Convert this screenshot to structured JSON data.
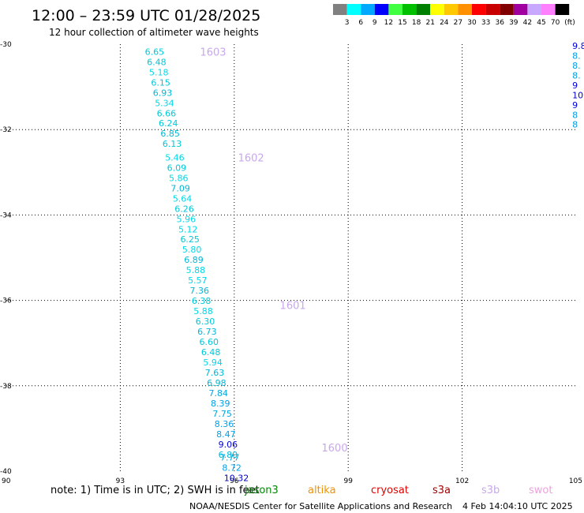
{
  "title": "12:00 – 23:59 UTC 01/28/2025",
  "subtitle": "12 hour collection of altimeter wave heights",
  "footer_left": "NOAA/NESDIS Center for Satellite Applications and Research",
  "footer_right": "4 Feb 14:04:10 UTC 2025",
  "note": "note:  1) Time is in UTC; 2) SWH is in feet",
  "missions": [
    {
      "name": "jason3",
      "color": "#008800"
    },
    {
      "name": "altika",
      "color": "#f09000"
    },
    {
      "name": "cryosat",
      "color": "#e00000"
    },
    {
      "name": "s3a",
      "color": "#a00000"
    },
    {
      "name": "s3b",
      "color": "#c8a8ec"
    },
    {
      "name": "swot",
      "color": "#f0a0e0"
    }
  ],
  "color_scale": {
    "unit": "(ft)",
    "labels": [
      "3",
      "6",
      "9",
      "12",
      "15",
      "18",
      "21",
      "24",
      "27",
      "30",
      "33",
      "36",
      "39",
      "42",
      "45",
      "70"
    ],
    "colors": [
      "#808080",
      "#00ffff",
      "#00a8ff",
      "#0000ff",
      "#40ff40",
      "#00c000",
      "#008000",
      "#ffff00",
      "#ffc800",
      "#ff9000",
      "#ff0000",
      "#c80000",
      "#800000",
      "#a000a0",
      "#c8a8ff",
      "#ff80ff",
      "#000000"
    ]
  },
  "chart_data": {
    "type": "scatter",
    "title": "12:00 – 23:59 UTC 01/28/2025",
    "subtitle": "12 hour collection of altimeter wave heights",
    "xlim": [
      90,
      105
    ],
    "ylim": [
      -40,
      -30
    ],
    "x_ticks": [
      "90",
      "93",
      "96",
      "99",
      "102",
      "105"
    ],
    "y_ticks": [
      "-30",
      "-32",
      "-34",
      "-36",
      "-38",
      "-40"
    ],
    "grid": true,
    "passes": [
      {
        "label": "1603",
        "lon": 95.1,
        "lat": -30.18
      },
      {
        "label": "1602",
        "lon": 96.1,
        "lat": -32.65
      },
      {
        "label": "1601",
        "lon": 97.2,
        "lat": -36.11
      },
      {
        "label": "1600",
        "lon": 98.3,
        "lat": -39.45
      }
    ],
    "points": [
      {
        "lon": 93.65,
        "lat": -30.18,
        "swh": "6.65",
        "color": "#00c8d8"
      },
      {
        "lon": 93.7,
        "lat": -30.42,
        "swh": "6.48",
        "color": "#00c8d8"
      },
      {
        "lon": 93.76,
        "lat": -30.66,
        "swh": "5.18",
        "color": "#00d8e8"
      },
      {
        "lon": 93.81,
        "lat": -30.9,
        "swh": "6.15",
        "color": "#00c8d8"
      },
      {
        "lon": 93.86,
        "lat": -31.14,
        "swh": "6.93",
        "color": "#00b8d8"
      },
      {
        "lon": 93.91,
        "lat": -31.38,
        "swh": "5.34",
        "color": "#00d8e8"
      },
      {
        "lon": 93.96,
        "lat": -31.62,
        "swh": "6.66",
        "color": "#00c8d8"
      },
      {
        "lon": 94.01,
        "lat": -31.85,
        "swh": "6.24",
        "color": "#00c8d8"
      },
      {
        "lon": 94.06,
        "lat": -32.09,
        "swh": "6.85",
        "color": "#00b8d8"
      },
      {
        "lon": 94.11,
        "lat": -32.33,
        "swh": "6.13",
        "color": "#00c8d8"
      },
      {
        "lon": 94.18,
        "lat": -32.65,
        "swh": "5.46",
        "color": "#00d8e8"
      },
      {
        "lon": 94.23,
        "lat": -32.89,
        "swh": "6.09",
        "color": "#00c8d8"
      },
      {
        "lon": 94.28,
        "lat": -33.13,
        "swh": "5.86",
        "color": "#00d8e8"
      },
      {
        "lon": 94.33,
        "lat": -33.37,
        "swh": "7.09",
        "color": "#00b8d8"
      },
      {
        "lon": 94.38,
        "lat": -33.61,
        "swh": "5.64",
        "color": "#00d8e8"
      },
      {
        "lon": 94.43,
        "lat": -33.85,
        "swh": "6.26",
        "color": "#00c8d8"
      },
      {
        "lon": 94.48,
        "lat": -34.09,
        "swh": "5.96",
        "color": "#00d8e8"
      },
      {
        "lon": 94.53,
        "lat": -34.33,
        "swh": "5.12",
        "color": "#00d8e8"
      },
      {
        "lon": 94.58,
        "lat": -34.57,
        "swh": "6.25",
        "color": "#00c8d8"
      },
      {
        "lon": 94.63,
        "lat": -34.81,
        "swh": "5.80",
        "color": "#00d8e8"
      },
      {
        "lon": 94.68,
        "lat": -35.05,
        "swh": "6.89",
        "color": "#00b8d8"
      },
      {
        "lon": 94.73,
        "lat": -35.29,
        "swh": "5.88",
        "color": "#00d8e8"
      },
      {
        "lon": 94.78,
        "lat": -35.53,
        "swh": "5.57",
        "color": "#00d8e8"
      },
      {
        "lon": 94.83,
        "lat": -35.77,
        "swh": "7.36",
        "color": "#00b8d8"
      },
      {
        "lon": 94.88,
        "lat": -36.01,
        "swh": "6.38",
        "color": "#00c8d8"
      },
      {
        "lon": 94.93,
        "lat": -36.25,
        "swh": "5.88",
        "color": "#00d8e8"
      },
      {
        "lon": 94.98,
        "lat": -36.49,
        "swh": "6.30",
        "color": "#00c8d8"
      },
      {
        "lon": 95.03,
        "lat": -36.73,
        "swh": "6.73",
        "color": "#00b8d8"
      },
      {
        "lon": 95.08,
        "lat": -36.97,
        "swh": "6.60",
        "color": "#00c8d8"
      },
      {
        "lon": 95.13,
        "lat": -37.21,
        "swh": "6.48",
        "color": "#00c8d8"
      },
      {
        "lon": 95.18,
        "lat": -37.45,
        "swh": "5.94",
        "color": "#00d8e8"
      },
      {
        "lon": 95.23,
        "lat": -37.69,
        "swh": "7.63",
        "color": "#00b8d8"
      },
      {
        "lon": 95.28,
        "lat": -37.93,
        "swh": "6.98",
        "color": "#00b8d8"
      },
      {
        "lon": 95.33,
        "lat": -38.17,
        "swh": "7.84",
        "color": "#00a8e0"
      },
      {
        "lon": 95.38,
        "lat": -38.41,
        "swh": "8.39",
        "color": "#00a0e8"
      },
      {
        "lon": 95.43,
        "lat": -38.65,
        "swh": "7.75",
        "color": "#00a8e0"
      },
      {
        "lon": 95.48,
        "lat": -38.89,
        "swh": "8.36",
        "color": "#00a0e8"
      },
      {
        "lon": 95.53,
        "lat": -39.13,
        "swh": "8.47",
        "color": "#00a0e8"
      },
      {
        "lon": 95.58,
        "lat": -39.37,
        "swh": "9.06",
        "color": "#0000e0"
      },
      {
        "lon": 95.58,
        "lat": -39.61,
        "swh": "6.80",
        "color": "#00b8d8"
      },
      {
        "lon": 95.63,
        "lat": -39.68,
        "swh": "7.77",
        "color": "#00a8e0"
      },
      {
        "lon": 95.68,
        "lat": -39.92,
        "swh": "8.72",
        "color": "#00a0e8"
      },
      {
        "lon": 95.73,
        "lat": -40.16,
        "swh": "10.32",
        "color": "#0000c8"
      }
    ],
    "edge_points": [
      {
        "lon": 104.9,
        "lat": -30.04,
        "swh": "9.8",
        "color": "#0000e0"
      },
      {
        "lon": 104.9,
        "lat": -30.27,
        "swh": "8.",
        "color": "#00a0e8"
      },
      {
        "lon": 104.9,
        "lat": -30.5,
        "swh": "8.",
        "color": "#00a0e8"
      },
      {
        "lon": 104.9,
        "lat": -30.73,
        "swh": "8.",
        "color": "#00a0e8"
      },
      {
        "lon": 104.9,
        "lat": -30.96,
        "swh": "9",
        "color": "#0000e0"
      },
      {
        "lon": 104.9,
        "lat": -31.19,
        "swh": "10",
        "color": "#0000c8"
      },
      {
        "lon": 104.9,
        "lat": -31.42,
        "swh": "9",
        "color": "#0000e0"
      },
      {
        "lon": 104.9,
        "lat": -31.65,
        "swh": "8",
        "color": "#00a0e8"
      },
      {
        "lon": 104.9,
        "lat": -31.88,
        "swh": "8",
        "color": "#00a0e8"
      }
    ]
  }
}
